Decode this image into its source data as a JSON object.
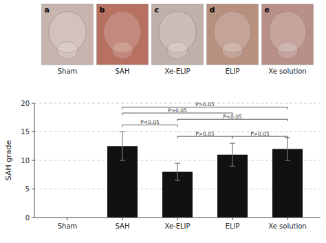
{
  "chart_data": {
    "type": "bar",
    "categories": [
      "Sham",
      "SAH",
      "Xe-ELIP",
      "ELIP",
      "Xe solution"
    ],
    "values": [
      0,
      12.5,
      8.0,
      11.0,
      12.0
    ],
    "errors": [
      0,
      2.5,
      1.5,
      2.0,
      2.0
    ],
    "color": "#111111",
    "ylabel": "SAH grade",
    "ylim": [
      0,
      20
    ],
    "yticks": [
      0,
      5,
      10,
      15,
      20
    ],
    "grid": true,
    "annotations": [
      {
        "text": "P<0.05",
        "x1": "SAH",
        "x2": "Xe-ELIP",
        "y": 16.2
      },
      {
        "text": "P>0.05",
        "x1": "Xe-ELIP",
        "x2": "ELIP",
        "y": 14.2
      },
      {
        "text": "P>0.05",
        "x1": "ELIP",
        "x2": "Xe solution",
        "y": 14.2
      },
      {
        "text": "P<0.05",
        "x1": "Xe-ELIP",
        "x2": "Xe solution",
        "y": 17.2
      },
      {
        "text": "P>0.05",
        "x1": "SAH",
        "x2": "ELIP",
        "y": 18.3
      },
      {
        "text": "P>0.05",
        "x1": "SAH",
        "x2": "Xe solution",
        "y": 19.3
      }
    ],
    "panels": [
      {
        "label": "a",
        "caption": "Sham",
        "color": "#c8b4ae"
      },
      {
        "label": "b",
        "caption": "SAH",
        "color": "#b87060"
      },
      {
        "label": "c",
        "caption": "Xe-ELIP",
        "color": "#c0b0aa"
      },
      {
        "label": "d",
        "caption": "ELIP",
        "color": "#b89080"
      },
      {
        "label": "e",
        "caption": "Xe solution",
        "color": "#b89088"
      }
    ]
  }
}
